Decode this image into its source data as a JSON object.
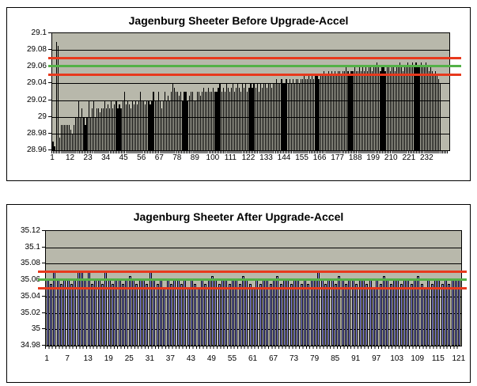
{
  "page": {
    "background": "#ffffff"
  },
  "colors": {
    "chart_border": "#000000",
    "plot_background": "#b8b8ab",
    "gridline": "#000000",
    "control_red": "#e8391d",
    "control_green": "#53b147",
    "bar_black": "#000000",
    "bar_lavender": "#9a9aff"
  },
  "chart_data": [
    {
      "type": "bar",
      "title": "Jagenburg Sheeter Before Upgrade-Accel",
      "ylim": [
        28.96,
        29.1
      ],
      "ytick_values": [
        29.1,
        29.08,
        29.06,
        29.04,
        29.02,
        29.0,
        28.98,
        28.96
      ],
      "ytick_labels": [
        "29.1",
        "29.08",
        "29.06",
        "29.04",
        "29.02",
        "29",
        "28.98",
        "28.96"
      ],
      "xtick_labels": [
        "1",
        "12",
        "23",
        "34",
        "45",
        "56",
        "67",
        "78",
        "89",
        "100",
        "111",
        "122",
        "133",
        "144",
        "155",
        "166",
        "177",
        "188",
        "199",
        "210",
        "221",
        "232"
      ],
      "n_slots": 245,
      "plot_bg": "#b8b8ab",
      "bar_fill": "#000000",
      "bar_border": "#000000",
      "grid": true,
      "legend": "none",
      "control_lines": [
        {
          "name": "upper-limit",
          "value": 29.07,
          "color": "#e8391d"
        },
        {
          "name": "target",
          "value": 29.06,
          "color": "#53b147"
        },
        {
          "name": "lower-limit",
          "value": 29.05,
          "color": "#e8391d"
        }
      ],
      "values": [
        28.97,
        28.965,
        29.09,
        29.085,
        28.975,
        28.99,
        28.99,
        28.99,
        28.99,
        28.99,
        28.99,
        28.985,
        28.98,
        28.99,
        29.0,
        29.0,
        29.02,
        29.0,
        29.01,
        29.0,
        28.99,
        29.0,
        29.02,
        29.0,
        29.01,
        29.02,
        29.0,
        29.01,
        29.01,
        29.005,
        29.01,
        29.01,
        29.02,
        29.01,
        29.015,
        29.01,
        29.02,
        29.01,
        29.015,
        29.02,
        29.01,
        29.015,
        29.01,
        29.02,
        29.03,
        29.015,
        29.02,
        29.015,
        29.01,
        29.02,
        29.015,
        29.02,
        29.015,
        29.02,
        29.03,
        29.02,
        29.02,
        29.015,
        29.02,
        29.02,
        29.015,
        29.02,
        29.03,
        29.02,
        29.02,
        29.03,
        29.02,
        29.01,
        29.02,
        29.03,
        29.02,
        29.025,
        29.02,
        29.03,
        29.04,
        29.035,
        29.03,
        29.03,
        29.025,
        29.03,
        29.02,
        29.03,
        29.03,
        29.02,
        29.025,
        29.03,
        29.03,
        29.02,
        29.02,
        29.03,
        29.03,
        29.025,
        29.03,
        29.035,
        29.03,
        29.03,
        29.035,
        29.03,
        29.03,
        29.035,
        29.03,
        29.03,
        29.035,
        29.04,
        29.03,
        29.035,
        29.03,
        29.04,
        29.035,
        29.03,
        29.035,
        29.04,
        29.03,
        29.035,
        29.04,
        29.035,
        29.03,
        29.04,
        29.035,
        29.04,
        29.03,
        29.035,
        29.04,
        29.035,
        29.04,
        29.035,
        29.04,
        29.03,
        29.04,
        29.035,
        29.04,
        29.04,
        29.035,
        29.04,
        29.04,
        29.035,
        29.04,
        29.04,
        29.045,
        29.04,
        29.04,
        29.045,
        29.04,
        29.04,
        29.045,
        29.04,
        29.045,
        29.04,
        29.045,
        29.04,
        29.045,
        29.045,
        29.04,
        29.045,
        29.045,
        29.05,
        29.045,
        29.045,
        29.05,
        29.045,
        29.05,
        29.045,
        29.05,
        29.05,
        29.045,
        29.05,
        29.05,
        29.055,
        29.05,
        29.05,
        29.055,
        29.05,
        29.055,
        29.05,
        29.055,
        29.05,
        29.055,
        29.055,
        29.05,
        29.055,
        29.055,
        29.06,
        29.055,
        29.05,
        29.055,
        29.055,
        29.06,
        29.055,
        29.055,
        29.06,
        29.055,
        29.06,
        29.055,
        29.06,
        29.055,
        29.06,
        29.06,
        29.055,
        29.06,
        29.06,
        29.065,
        29.06,
        29.055,
        29.06,
        29.06,
        29.055,
        29.06,
        29.06,
        29.055,
        29.06,
        29.06,
        29.055,
        29.06,
        29.06,
        29.065,
        29.06,
        29.055,
        29.06,
        29.06,
        29.065,
        29.06,
        29.06,
        29.065,
        29.06,
        29.065,
        29.06,
        29.06,
        29.065,
        29.06,
        29.06,
        29.065,
        29.06,
        29.055,
        29.06,
        29.055,
        29.05,
        29.055,
        29.05,
        29.045,
        29.04
      ]
    },
    {
      "type": "bar",
      "title": "Jagenburg Sheeter After Upgrade-Accel",
      "ylim": [
        34.98,
        35.12
      ],
      "ytick_values": [
        35.12,
        35.1,
        35.08,
        35.06,
        35.04,
        35.02,
        35.0,
        34.98
      ],
      "ytick_labels": [
        "35.12",
        "35.1",
        "35.08",
        "35.06",
        "35.04",
        "35.02",
        "35",
        "34.98"
      ],
      "xtick_labels": [
        "1",
        "7",
        "13",
        "19",
        "25",
        "31",
        "37",
        "43",
        "49",
        "55",
        "61",
        "67",
        "73",
        "79",
        "85",
        "91",
        "97",
        "103",
        "109",
        "115",
        "121"
      ],
      "n_slots": 121,
      "plot_bg": "#b8b8ab",
      "bar_fill": "#9a9aff",
      "bar_border": "#000000",
      "grid": true,
      "legend": "none",
      "control_lines": [
        {
          "name": "upper-limit",
          "value": 35.07,
          "color": "#e8391d"
        },
        {
          "name": "target",
          "value": 35.06,
          "color": "#53b147"
        },
        {
          "name": "lower-limit",
          "value": 35.05,
          "color": "#e8391d"
        }
      ],
      "values": [
        35.06,
        35.055,
        35.07,
        35.06,
        35.055,
        35.06,
        35.06,
        35.055,
        35.06,
        35.07,
        35.07,
        35.06,
        35.07,
        35.055,
        35.06,
        35.06,
        35.055,
        35.07,
        35.06,
        35.055,
        35.06,
        35.06,
        35.055,
        35.06,
        35.065,
        35.06,
        35.055,
        35.06,
        35.06,
        35.055,
        35.07,
        35.06,
        35.055,
        35.06,
        35.05,
        35.06,
        35.055,
        35.06,
        35.06,
        35.055,
        35.06,
        35.05,
        35.06,
        35.055,
        35.05,
        35.06,
        35.055,
        35.06,
        35.065,
        35.06,
        35.055,
        35.06,
        35.06,
        35.055,
        35.06,
        35.06,
        35.055,
        35.065,
        35.06,
        35.055,
        35.05,
        35.06,
        35.055,
        35.06,
        35.06,
        35.055,
        35.06,
        35.065,
        35.055,
        35.06,
        35.06,
        35.055,
        35.06,
        35.06,
        35.055,
        35.06,
        35.055,
        35.06,
        35.06,
        35.07,
        35.06,
        35.055,
        35.06,
        35.06,
        35.055,
        35.065,
        35.06,
        35.055,
        35.06,
        35.06,
        35.055,
        35.06,
        35.06,
        35.055,
        35.06,
        35.05,
        35.06,
        35.055,
        35.065,
        35.06,
        35.055,
        35.06,
        35.06,
        35.055,
        35.06,
        35.06,
        35.055,
        35.06,
        35.065,
        35.055,
        35.05,
        35.06,
        35.055,
        35.06,
        35.06,
        35.055,
        35.06,
        35.055,
        35.06,
        35.06,
        35.06
      ]
    }
  ]
}
